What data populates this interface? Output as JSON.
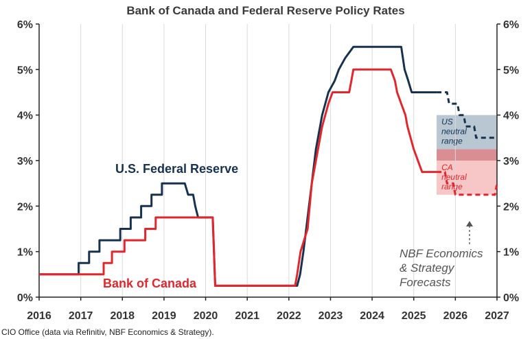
{
  "chart_data": {
    "type": "line",
    "title": "Bank of Canada and Federal Reserve Policy Rates",
    "x_ticks": [
      "2016",
      "2017",
      "2018",
      "2019",
      "2020",
      "2021",
      "2022",
      "2023",
      "2024",
      "2025",
      "2026",
      "2027"
    ],
    "y_ticks_left": [
      "0%",
      "1%",
      "2%",
      "3%",
      "4%",
      "5%",
      "6%"
    ],
    "y_ticks_right": [
      "0%",
      "1%",
      "2%",
      "3%",
      "4%",
      "5%",
      "6%"
    ],
    "xlim": [
      2016,
      2027
    ],
    "ylim": [
      0,
      6
    ],
    "grid": "vertical",
    "source": "CIO Office (data via Refinitiv, NBF Economics & Strategy).",
    "series": [
      {
        "name": "U.S. Federal Reserve",
        "color": "#16324f",
        "style": "solid",
        "points": [
          [
            2016,
            0.5
          ],
          [
            2016.95,
            0.5
          ],
          [
            2016.95,
            0.75
          ],
          [
            2017.2,
            0.75
          ],
          [
            2017.2,
            1.0
          ],
          [
            2017.45,
            1.0
          ],
          [
            2017.45,
            1.25
          ],
          [
            2017.95,
            1.25
          ],
          [
            2017.95,
            1.5
          ],
          [
            2018.2,
            1.5
          ],
          [
            2018.2,
            1.75
          ],
          [
            2018.45,
            1.75
          ],
          [
            2018.45,
            2.0
          ],
          [
            2018.7,
            2.0
          ],
          [
            2018.7,
            2.25
          ],
          [
            2018.95,
            2.25
          ],
          [
            2018.95,
            2.5
          ],
          [
            2019.5,
            2.5
          ],
          [
            2019.58,
            2.25
          ],
          [
            2019.7,
            2.25
          ],
          [
            2019.75,
            2.0
          ],
          [
            2019.82,
            1.75
          ],
          [
            2020.17,
            1.75
          ],
          [
            2020.23,
            0.25
          ],
          [
            2022.2,
            0.25
          ],
          [
            2022.27,
            0.5
          ],
          [
            2022.35,
            1.0
          ],
          [
            2022.45,
            1.75
          ],
          [
            2022.55,
            2.5
          ],
          [
            2022.65,
            3.25
          ],
          [
            2022.8,
            4.0
          ],
          [
            2022.95,
            4.5
          ],
          [
            2023.1,
            4.75
          ],
          [
            2023.2,
            5.0
          ],
          [
            2023.35,
            5.25
          ],
          [
            2023.55,
            5.5
          ],
          [
            2024.7,
            5.5
          ],
          [
            2024.78,
            5.0
          ],
          [
            2024.87,
            4.75
          ],
          [
            2024.95,
            4.5
          ],
          [
            2025.55,
            4.5
          ]
        ]
      },
      {
        "name": "U.S. Federal Reserve forecast",
        "color": "#16324f",
        "style": "dashed",
        "points": [
          [
            2025.55,
            4.5
          ],
          [
            2025.8,
            4.5
          ],
          [
            2025.85,
            4.25
          ],
          [
            2026.05,
            4.25
          ],
          [
            2026.1,
            4.0
          ],
          [
            2026.2,
            4.0
          ],
          [
            2026.25,
            3.75
          ],
          [
            2026.45,
            3.75
          ],
          [
            2026.5,
            3.5
          ],
          [
            2027,
            3.5
          ]
        ]
      },
      {
        "name": "Bank of Canada",
        "color": "#e3262b",
        "style": "solid",
        "points": [
          [
            2016,
            0.5
          ],
          [
            2017.55,
            0.5
          ],
          [
            2017.55,
            0.75
          ],
          [
            2017.75,
            0.75
          ],
          [
            2017.75,
            1.0
          ],
          [
            2018.05,
            1.0
          ],
          [
            2018.05,
            1.25
          ],
          [
            2018.55,
            1.25
          ],
          [
            2018.55,
            1.5
          ],
          [
            2018.8,
            1.5
          ],
          [
            2018.8,
            1.75
          ],
          [
            2020.17,
            1.75
          ],
          [
            2020.23,
            0.25
          ],
          [
            2022.15,
            0.25
          ],
          [
            2022.2,
            0.5
          ],
          [
            2022.28,
            1.0
          ],
          [
            2022.45,
            1.5
          ],
          [
            2022.55,
            2.5
          ],
          [
            2022.7,
            3.25
          ],
          [
            2022.8,
            3.75
          ],
          [
            2022.95,
            4.25
          ],
          [
            2023.05,
            4.5
          ],
          [
            2023.45,
            4.5
          ],
          [
            2023.5,
            4.75
          ],
          [
            2023.55,
            5.0
          ],
          [
            2024.45,
            5.0
          ],
          [
            2024.55,
            4.75
          ],
          [
            2024.6,
            4.5
          ],
          [
            2024.7,
            4.25
          ],
          [
            2024.8,
            4.0
          ],
          [
            2024.85,
            3.75
          ],
          [
            2025.0,
            3.25
          ],
          [
            2025.1,
            3.0
          ],
          [
            2025.2,
            2.75
          ],
          [
            2025.55,
            2.75
          ]
        ]
      },
      {
        "name": "Bank of Canada forecast",
        "color": "#e3262b",
        "style": "dashed",
        "points": [
          [
            2025.55,
            2.75
          ],
          [
            2025.75,
            2.75
          ],
          [
            2025.8,
            2.5
          ],
          [
            2025.95,
            2.5
          ],
          [
            2026.0,
            2.25
          ],
          [
            2026.95,
            2.25
          ],
          [
            2027,
            2.5
          ]
        ]
      }
    ],
    "bands": [
      {
        "label_lines": [
          "US",
          "neutral",
          "range"
        ],
        "x": [
          2025.55,
          2027
        ],
        "y": [
          3.25,
          4.0
        ],
        "color": "#b8c7d2",
        "text_color": "#16324f"
      },
      {
        "label_lines": [
          "CA",
          "neutral",
          "range"
        ],
        "x": [
          2025.55,
          2027
        ],
        "y": [
          2.25,
          3.0
        ],
        "color": "#f7c6c6",
        "text_color": "#e3262b"
      },
      {
        "label_lines": [],
        "x": [
          2025.55,
          2027
        ],
        "y": [
          3.0,
          3.25
        ],
        "color": "#d98e93",
        "text_color": "#e3262b"
      }
    ],
    "labels": {
      "fed": "U.S. Federal Reserve",
      "boc": "Bank of Canada",
      "forecast_lines": [
        "NBF Economics",
        "& Strategy",
        "Forecasts"
      ]
    }
  }
}
